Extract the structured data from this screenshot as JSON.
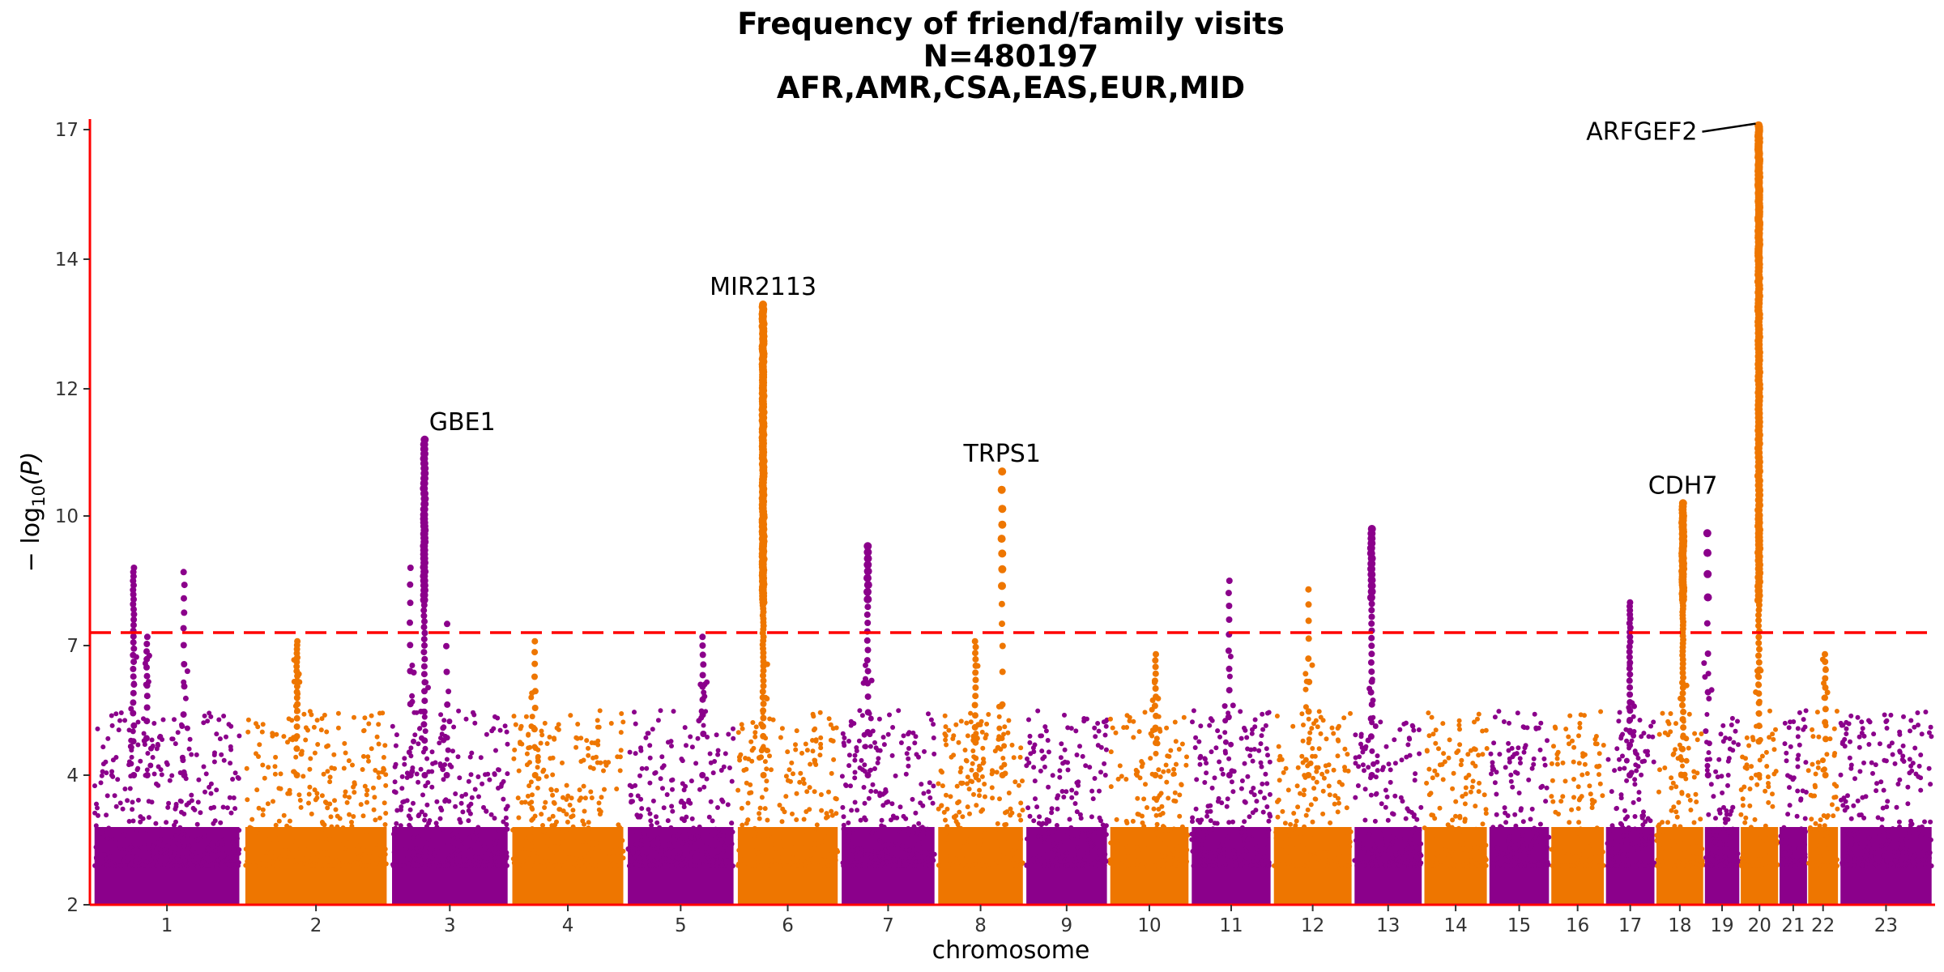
{
  "chart_data": {
    "type": "scatter",
    "title_lines": [
      "Frequency of friend/family visits",
      "N=480197",
      "AFR,AMR,CSA,EAS,EUR,MID"
    ],
    "xlabel": "chromosome",
    "ylabel_parts": {
      "prefix": "− log",
      "sub": "10",
      "suffix": "(P)"
    },
    "y_scale": "-log10(P), compressed above 10",
    "y_ticks": [
      {
        "value": 2,
        "label": "2"
      },
      {
        "value": 4,
        "label": "4"
      },
      {
        "value": 7,
        "label": "7"
      },
      {
        "value": 10,
        "label": "10"
      },
      {
        "value": 12,
        "label": "12"
      },
      {
        "value": 14,
        "label": "14"
      },
      {
        "value": 17,
        "label": "17"
      }
    ],
    "ylim": [
      2,
      17.2
    ],
    "significance_threshold": 7.3,
    "colors": {
      "odd": "#8B008B",
      "even": "#EE7600",
      "axis": "#FF0000",
      "threshold": "#FF0000"
    },
    "chromosomes": [
      {
        "label": "1",
        "start": 0,
        "end": 248,
        "color": "purple"
      },
      {
        "label": "2",
        "start": 248,
        "end": 490,
        "color": "orange"
      },
      {
        "label": "3",
        "start": 490,
        "end": 688,
        "color": "purple"
      },
      {
        "label": "4",
        "start": 688,
        "end": 878,
        "color": "orange"
      },
      {
        "label": "5",
        "start": 878,
        "end": 1059,
        "color": "purple"
      },
      {
        "label": "6",
        "start": 1059,
        "end": 1230,
        "color": "orange"
      },
      {
        "label": "7",
        "start": 1230,
        "end": 1389,
        "color": "purple"
      },
      {
        "label": "8",
        "start": 1389,
        "end": 1534,
        "color": "orange"
      },
      {
        "label": "9",
        "start": 1534,
        "end": 1672,
        "color": "purple"
      },
      {
        "label": "10",
        "start": 1672,
        "end": 1806,
        "color": "orange"
      },
      {
        "label": "11",
        "start": 1806,
        "end": 1941,
        "color": "purple"
      },
      {
        "label": "12",
        "start": 1941,
        "end": 2074,
        "color": "orange"
      },
      {
        "label": "13",
        "start": 2074,
        "end": 2189,
        "color": "purple"
      },
      {
        "label": "14",
        "start": 2189,
        "end": 2296,
        "color": "orange"
      },
      {
        "label": "15",
        "start": 2296,
        "end": 2398,
        "color": "purple"
      },
      {
        "label": "16",
        "start": 2398,
        "end": 2488,
        "color": "orange"
      },
      {
        "label": "17",
        "start": 2488,
        "end": 2571,
        "color": "purple"
      },
      {
        "label": "18",
        "start": 2571,
        "end": 2651,
        "color": "orange"
      },
      {
        "label": "19",
        "start": 2651,
        "end": 2710,
        "color": "purple"
      },
      {
        "label": "20",
        "start": 2710,
        "end": 2774,
        "color": "orange"
      },
      {
        "label": "21",
        "start": 2774,
        "end": 2821,
        "color": "purple"
      },
      {
        "label": "22",
        "start": 2821,
        "end": 2872,
        "color": "orange"
      },
      {
        "label": "23",
        "start": 2872,
        "end": 3028,
        "color": "purple"
      }
    ],
    "peaks": [
      {
        "pos": 69,
        "top": 8.8,
        "n": 28
      },
      {
        "pos": 91,
        "top": 7.2,
        "n": 12
      },
      {
        "pos": 152,
        "top": 8.7,
        "n": 10
      },
      {
        "pos": 338,
        "top": 7.1,
        "n": 20
      },
      {
        "pos": 524,
        "top": 8.8,
        "n": 8
      },
      {
        "pos": 547,
        "top": 11.2,
        "n": 55
      },
      {
        "pos": 584,
        "top": 7.5,
        "n": 5
      },
      {
        "pos": 729,
        "top": 7.1,
        "n": 8
      },
      {
        "pos": 1005,
        "top": 7.2,
        "n": 10
      },
      {
        "pos": 1104,
        "top": 13.3,
        "n": 140
      },
      {
        "pos": 1276,
        "top": 9.3,
        "n": 22
      },
      {
        "pos": 1453,
        "top": 7.1,
        "n": 14
      },
      {
        "pos": 1497,
        "top": 10.7,
        "n": 14
      },
      {
        "pos": 1749,
        "top": 6.8,
        "n": 12
      },
      {
        "pos": 1870,
        "top": 8.5,
        "n": 10
      },
      {
        "pos": 2001,
        "top": 8.3,
        "n": 8
      },
      {
        "pos": 2104,
        "top": 9.7,
        "n": 30
      },
      {
        "pos": 2529,
        "top": 8.0,
        "n": 25
      },
      {
        "pos": 2616,
        "top": 10.2,
        "n": 70
      },
      {
        "pos": 2657,
        "top": 9.6,
        "n": 8
      },
      {
        "pos": 2741,
        "top": 17.1,
        "n": 170
      },
      {
        "pos": 2850,
        "top": 6.8,
        "n": 10
      }
    ],
    "annotations": [
      {
        "label": "GBE1",
        "pos": 547,
        "y": 11.2,
        "anchor": "start",
        "leader": false
      },
      {
        "label": "MIR2113",
        "pos": 1104,
        "y": 13.3,
        "anchor": "middle",
        "leader": false
      },
      {
        "label": "TRPS1",
        "pos": 1497,
        "y": 10.7,
        "anchor": "middle",
        "leader": false
      },
      {
        "label": "CDH7",
        "pos": 2616,
        "y": 10.2,
        "anchor": "middle",
        "leader": false
      },
      {
        "label": "ARFGEF2",
        "pos": 2741,
        "y": 17.1,
        "anchor": "end",
        "leader": true
      }
    ]
  }
}
